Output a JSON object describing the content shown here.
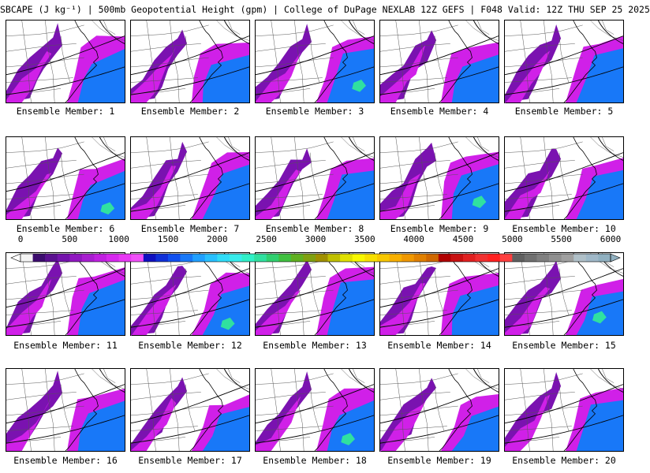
{
  "header": {
    "title": "SBCAPE (J kg⁻¹) | 500mb Geopotential Height (gpm) | College of DuPage NEXLAB 12Z GEFS | F048 Valid: 12Z THU SEP 25 2025"
  },
  "panel_label_prefix": "Ensemble Member:",
  "members": [
    {
      "label": "Ensemble Member: 1"
    },
    {
      "label": "Ensemble Member: 2"
    },
    {
      "label": "Ensemble Member: 3"
    },
    {
      "label": "Ensemble Member: 4"
    },
    {
      "label": "Ensemble Member: 5"
    },
    {
      "label": "Ensemble Member: 6"
    },
    {
      "label": "Ensemble Member: 7"
    },
    {
      "label": "Ensemble Member: 8"
    },
    {
      "label": "Ensemble Member: 9"
    },
    {
      "label": "Ensemble Member: 10"
    },
    {
      "label": "Ensemble Member: 11"
    },
    {
      "label": "Ensemble Member: 12"
    },
    {
      "label": "Ensemble Member: 13"
    },
    {
      "label": "Ensemble Member: 14"
    },
    {
      "label": "Ensemble Member: 15"
    },
    {
      "label": "Ensemble Member: 16"
    },
    {
      "label": "Ensemble Member: 17"
    },
    {
      "label": "Ensemble Member: 18"
    },
    {
      "label": "Ensemble Member: 19"
    },
    {
      "label": "Ensemble Member: 20"
    }
  ],
  "colorbar": {
    "tick_labels": [
      "0",
      "500",
      "1000",
      "1500",
      "2000",
      "2500",
      "3000",
      "3500",
      "4000",
      "4500",
      "5000",
      "5500",
      "6000"
    ],
    "colors": [
      "#f4f4f4",
      "#3c0d6e",
      "#5a1090",
      "#7413ac",
      "#9018c0",
      "#a81ed0",
      "#c020e0",
      "#d628ee",
      "#e838f4",
      "#f050f8",
      "#1010c0",
      "#1030d8",
      "#1050f0",
      "#1878f8",
      "#20a0ff",
      "#28c0ff",
      "#30dcf8",
      "#38ecec",
      "#30f0c8",
      "#30e0a0",
      "#30d070",
      "#40c040",
      "#60b020",
      "#80a010",
      "#a09000",
      "#c0c000",
      "#e0e000",
      "#f8f800",
      "#f8e000",
      "#f8c800",
      "#f8b000",
      "#f09800",
      "#e08000",
      "#d06800",
      "#b00000",
      "#c81010",
      "#e02020",
      "#f03030",
      "#ff2020",
      "#ff4040",
      "#606060",
      "#707070",
      "#808080",
      "#909090",
      "#a0a0a0",
      "#b0c0c8",
      "#a0b8c8",
      "#90b0c0"
    ]
  },
  "legend_colors": {
    "cape_low": "#7a12b0",
    "cape_mid": "#d020e8",
    "cape_high": "#1878f8",
    "cape_peak": "#30e0a0",
    "map_lines": "#555555"
  }
}
